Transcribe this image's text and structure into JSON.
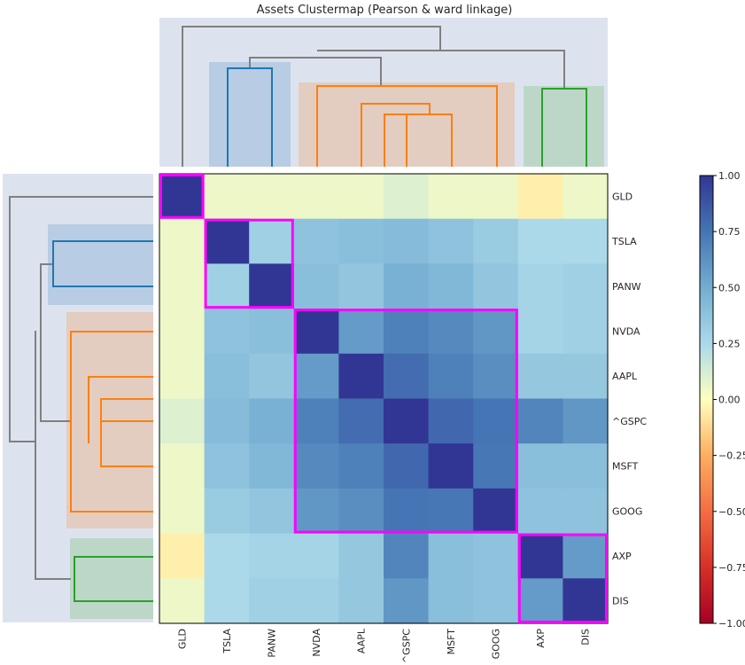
{
  "chart_data": {
    "type": "heatmap",
    "title": "Assets Clustermap (Pearson & ward linkage)",
    "labels": [
      "GLD",
      "TSLA",
      "PANW",
      "NVDA",
      "AAPL",
      "^GSPC",
      "MSFT",
      "GOOG",
      "AXP",
      "DIS"
    ],
    "values": [
      [
        1.0,
        0.05,
        0.05,
        0.05,
        0.05,
        0.1,
        0.05,
        0.05,
        -0.05,
        0.05
      ],
      [
        0.05,
        1.0,
        0.3,
        0.38,
        0.4,
        0.42,
        0.38,
        0.33,
        0.25,
        0.25
      ],
      [
        0.05,
        0.3,
        1.0,
        0.4,
        0.36,
        0.48,
        0.44,
        0.36,
        0.28,
        0.3
      ],
      [
        0.05,
        0.38,
        0.4,
        1.0,
        0.58,
        0.7,
        0.66,
        0.6,
        0.28,
        0.3
      ],
      [
        0.05,
        0.4,
        0.36,
        0.58,
        1.0,
        0.78,
        0.7,
        0.64,
        0.35,
        0.35
      ],
      [
        0.1,
        0.42,
        0.48,
        0.7,
        0.78,
        1.0,
        0.8,
        0.75,
        0.68,
        0.6
      ],
      [
        0.05,
        0.38,
        0.44,
        0.66,
        0.7,
        0.8,
        1.0,
        0.74,
        0.4,
        0.4
      ],
      [
        0.05,
        0.33,
        0.36,
        0.6,
        0.64,
        0.75,
        0.74,
        1.0,
        0.38,
        0.38
      ],
      [
        -0.05,
        0.25,
        0.28,
        0.28,
        0.35,
        0.68,
        0.4,
        0.38,
        1.0,
        0.58
      ],
      [
        0.05,
        0.25,
        0.3,
        0.3,
        0.35,
        0.6,
        0.4,
        0.38,
        0.58,
        1.0
      ]
    ],
    "colorbar": {
      "min": -1.0,
      "max": 1.0,
      "ticks": [
        "1.00",
        "0.75",
        "0.50",
        "0.25",
        "0.00",
        "−0.25",
        "−0.50",
        "−0.75",
        "−1.00"
      ],
      "tick_values": [
        1.0,
        0.75,
        0.5,
        0.25,
        0.0,
        -0.25,
        -0.5,
        -0.75,
        -1.0
      ]
    },
    "clusters": [
      {
        "name": "GLD",
        "members": [
          "GLD"
        ],
        "color": "#ff00ff"
      },
      {
        "name": "TSLA-PANW",
        "members": [
          "TSLA",
          "PANW"
        ],
        "color": "#ff00ff"
      },
      {
        "name": "NVDA-AAPL-^GSPC-MSFT-GOOG",
        "members": [
          "NVDA",
          "AAPL",
          "^GSPC",
          "MSFT",
          "GOOG"
        ],
        "color": "#ff00ff"
      },
      {
        "name": "AXP-DIS",
        "members": [
          "AXP",
          "DIS"
        ],
        "color": "#ff00ff"
      }
    ],
    "dendrogram_colors": {
      "root": "#808080",
      "cluster_blue": "#1f77b4",
      "cluster_orange": "#ff7f0e",
      "cluster_green": "#2ca02c",
      "panel_background": "#dde3ee",
      "shade_blue": "#b8cce3",
      "shade_orange": "#e3cdc1",
      "shade_green": "#bcd7c7"
    }
  }
}
